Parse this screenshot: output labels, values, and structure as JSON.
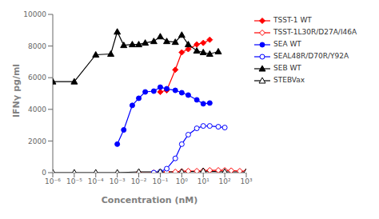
{
  "chart_data": {
    "type": "line",
    "title": "",
    "xlabel": "Concentration (nM)",
    "ylabel": "IFNγ pg/ml",
    "log": "x",
    "grid": false,
    "legend": "right",
    "xlim": [
      1e-06,
      1000
    ],
    "ylim": [
      0,
      10000
    ],
    "yticks": [
      0,
      2000,
      4000,
      6000,
      8000,
      10000
    ],
    "xticks": [
      {
        "value": 1e-06,
        "label": "10⁻⁶"
      },
      {
        "value": 1e-05,
        "label": "10⁻⁵"
      },
      {
        "value": 0.0001,
        "label": "10⁻⁴"
      },
      {
        "value": 0.001,
        "label": "10⁻³"
      },
      {
        "value": 0.01,
        "label": "10⁻²"
      },
      {
        "value": 0.1,
        "label": "10⁻¹"
      },
      {
        "value": 1,
        "label": "10⁰"
      },
      {
        "value": 10,
        "label": "10¹"
      },
      {
        "value": 100,
        "label": "10²"
      },
      {
        "value": 1000,
        "label": "10³"
      }
    ],
    "series": [
      {
        "name": "TSST-1 WT",
        "color": "red",
        "marker": "diamond",
        "x": [
          0.1,
          0.2,
          0.5,
          1.0,
          2.0,
          5.0,
          10.0,
          20.0
        ],
        "values": [
          5100,
          5200,
          6500,
          7600,
          7800,
          8100,
          8200,
          8400
        ]
      },
      {
        "name": "TSST-1L30R/D27A/I46A",
        "color": "red",
        "marker": "diamond_open",
        "x": [
          0.01,
          0.05,
          0.1,
          0.2,
          0.5,
          1.0,
          2.0,
          5.0,
          10.0,
          20.0,
          50.0,
          100.0,
          200.0,
          500.0,
          1000.0
        ],
        "values": [
          0,
          0,
          0,
          50,
          50,
          80,
          100,
          100,
          120,
          150,
          150,
          150,
          130,
          100,
          80
        ]
      },
      {
        "name": "SEA WT",
        "color": "blue",
        "marker": "circle",
        "x": [
          0.001,
          0.002,
          0.005,
          0.01,
          0.02,
          0.05,
          0.1,
          0.2,
          0.5,
          1.0,
          2.0,
          5.0,
          10.0,
          20.0
        ],
        "values": [
          1800,
          2700,
          4250,
          4700,
          5100,
          5150,
          5400,
          5300,
          5200,
          5050,
          4900,
          4600,
          4350,
          4400
        ]
      },
      {
        "name": "SEAL48R/D70R/Y92A",
        "color": "blue",
        "marker": "circle_open",
        "x": [
          0.05,
          0.1,
          0.2,
          0.5,
          1.0,
          2.0,
          5.0,
          10.0,
          20.0,
          50.0,
          100.0
        ],
        "values": [
          0,
          50,
          250,
          900,
          1800,
          2400,
          2800,
          2950,
          2950,
          2900,
          2850
        ]
      },
      {
        "name": "SEB WT",
        "color": "black",
        "marker": "triangle",
        "x": [
          1e-06,
          1e-05,
          0.0001,
          0.0005,
          0.001,
          0.002,
          0.005,
          0.01,
          0.02,
          0.05,
          0.1,
          0.2,
          0.5,
          1.0,
          2.0,
          5.0,
          10.0,
          20.0,
          50.0
        ],
        "values": [
          5750,
          5750,
          7450,
          7500,
          8900,
          8050,
          8100,
          8100,
          8200,
          8300,
          8600,
          8300,
          8250,
          8700,
          8100,
          7700,
          7600,
          7500,
          7650
        ]
      },
      {
        "name": "STEBVax",
        "color": "black",
        "marker": "triangle_open",
        "x": [
          1e-06,
          1e-05,
          0.0001,
          0.001,
          0.01,
          0.1,
          1.0,
          10.0,
          100.0,
          1000.0
        ],
        "values": [
          0,
          0,
          0,
          0,
          50,
          50,
          50,
          100,
          50,
          50
        ]
      }
    ]
  }
}
